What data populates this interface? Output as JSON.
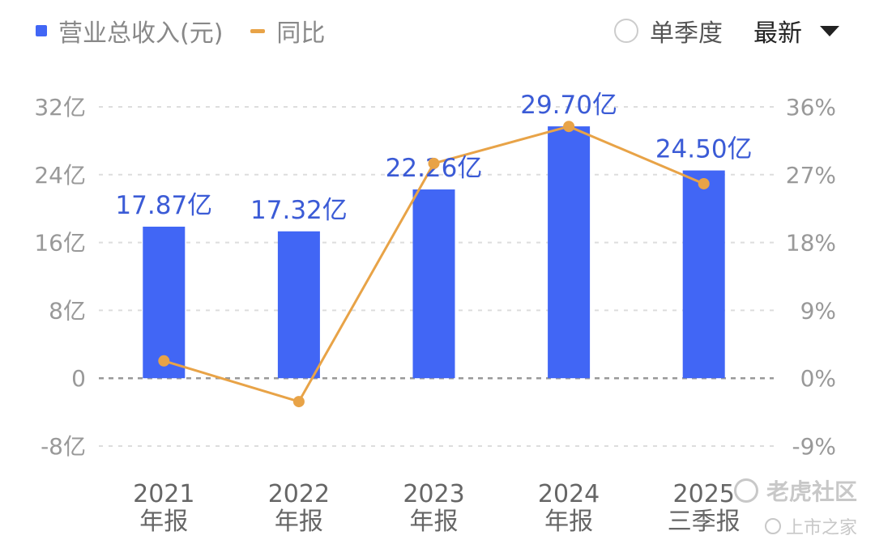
{
  "legend": {
    "bar_label": "营业总收入(元)",
    "line_label": "同比"
  },
  "controls": {
    "quarter_label": "单季度",
    "period_label": "最新"
  },
  "watermark": {
    "primary": "老虎社区",
    "secondary": "上市之家"
  },
  "colors": {
    "bar": "#4166f5",
    "line": "#e8a347",
    "bar_label": "#3b5bd6",
    "axis_text": "#999999",
    "grid": "#dddddd",
    "zero_line": "#999999",
    "x_label": "#666666"
  },
  "chart_data": {
    "type": "bar",
    "categories": [
      [
        "2021",
        "年报"
      ],
      [
        "2022",
        "年报"
      ],
      [
        "2023",
        "年报"
      ],
      [
        "2024",
        "年报"
      ],
      [
        "2025",
        "三季报"
      ]
    ],
    "series": [
      {
        "name": "营业总收入(元)",
        "type": "bar",
        "axis": "left",
        "values": [
          17.87,
          17.32,
          22.26,
          29.7,
          24.5
        ],
        "data_labels": [
          "17.87亿",
          "17.32亿",
          "22.26亿",
          "29.70亿",
          "24.50亿"
        ]
      },
      {
        "name": "同比",
        "type": "line",
        "axis": "right",
        "values": [
          2.3,
          -3.1,
          28.5,
          33.4,
          25.8
        ]
      }
    ],
    "y_left": {
      "ticks": [
        -8,
        0,
        8,
        16,
        24,
        32
      ],
      "tick_labels": [
        "-8亿",
        "0",
        "8亿",
        "16亿",
        "24亿",
        "32亿"
      ],
      "ylim": [
        -8,
        32
      ]
    },
    "y_right": {
      "ticks": [
        -9,
        0,
        9,
        18,
        27,
        36
      ],
      "tick_labels": [
        "-9%",
        "0%",
        "9%",
        "18%",
        "27%",
        "36%"
      ],
      "ylim": [
        -9,
        36
      ]
    },
    "grid": true
  }
}
